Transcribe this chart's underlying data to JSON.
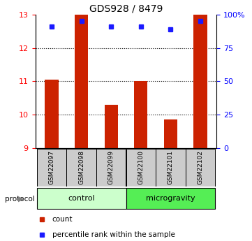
{
  "title": "GDS928 / 8479",
  "samples": [
    "GSM22097",
    "GSM22098",
    "GSM22099",
    "GSM22100",
    "GSM22101",
    "GSM22102"
  ],
  "bar_values": [
    11.05,
    13.0,
    10.3,
    11.0,
    9.85,
    13.0
  ],
  "bar_bottom": 9.0,
  "percentile_values": [
    91,
    95,
    91,
    91,
    89,
    95
  ],
  "ylim_left": [
    9,
    13
  ],
  "ylim_right": [
    0,
    100
  ],
  "yticks_left": [
    9,
    10,
    11,
    12,
    13
  ],
  "yticks_right": [
    0,
    25,
    50,
    75,
    100
  ],
  "ytick_labels_right": [
    "0",
    "25",
    "50",
    "75",
    "100%"
  ],
  "bar_color": "#cc2200",
  "blue_color": "#1a1aff",
  "control_color": "#ccffcc",
  "microgravity_color": "#55ee55",
  "sample_label_bg": "#cccccc",
  "bar_width": 0.45,
  "legend_count_color": "#cc2200",
  "legend_pct_color": "#1a1aff",
  "n_control": 3,
  "n_microgravity": 3
}
